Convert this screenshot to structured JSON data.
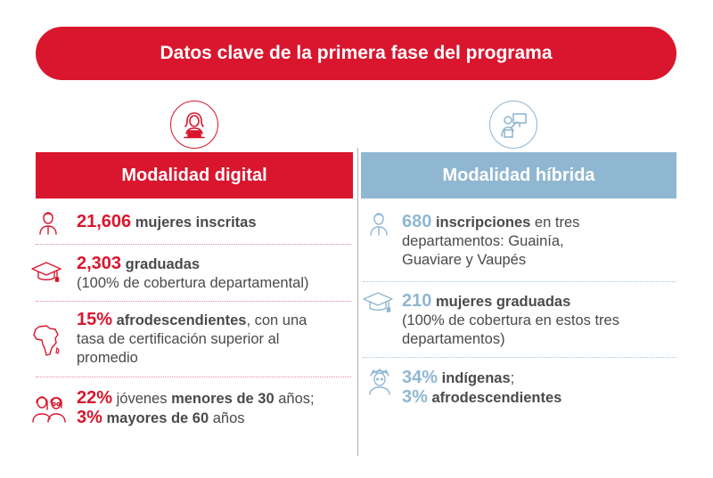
{
  "title": "Datos clave de la primera fase del programa",
  "colors": {
    "red": "#d9162e",
    "blue": "#8fb7d2",
    "text": "#4a4a4a"
  },
  "digital": {
    "heading": "Modalidad digital",
    "item1": {
      "num": "21,606",
      "bold": "mujeres inscritas"
    },
    "item2": {
      "num": "2,303",
      "bold": "graduadas",
      "text": "(100% de cobertura departamental)"
    },
    "item3": {
      "num": "15%",
      "bold": "afrodescendientes",
      "text1": ", con una",
      "text2": "tasa de certificación superior al",
      "text3": "promedio"
    },
    "item4": {
      "num1": "22%",
      "text1": " jóvenes ",
      "bold1": "menores de 30",
      "text2": " años;",
      "num2": "3%",
      "bold2": "mayores de 60",
      "text3": " años"
    }
  },
  "hybrid": {
    "heading": "Modalidad híbrida",
    "item1": {
      "num": "680",
      "bold": "inscripciones",
      "text1": " en tres",
      "text2": "departamentos: Guainía,",
      "text3": "Guaviare y Vaupés"
    },
    "item2": {
      "num": "210",
      "bold": "mujeres graduadas",
      "text1": "(100% de cobertura en estos tres",
      "text2": "departamentos)"
    },
    "item3": {
      "num1": "34%",
      "bold1": "indígenas",
      "text1": ";",
      "num2": "3%",
      "bold2": "afrodescendientes"
    }
  },
  "icons": [
    "woman-laptop-icon",
    "woman-presenter-icon",
    "woman-icon",
    "graduation-cap-icon",
    "africa-map-icon",
    "two-women-icon",
    "indigenous-woman-icon"
  ]
}
